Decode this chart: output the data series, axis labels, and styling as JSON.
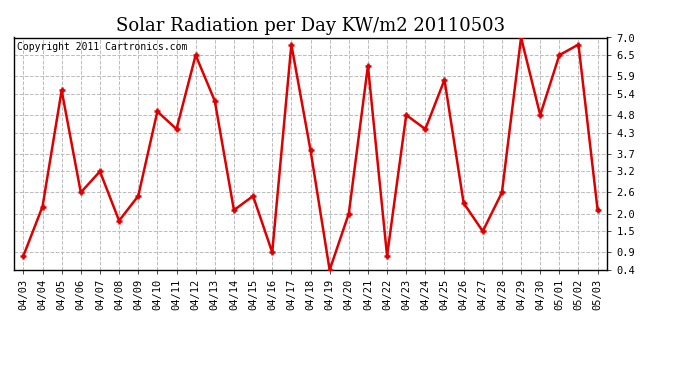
{
  "title": "Solar Radiation per Day KW/m2 20110503",
  "copyright_text": "Copyright 2011 Cartronics.com",
  "dates": [
    "04/03",
    "04/04",
    "04/05",
    "04/06",
    "04/07",
    "04/08",
    "04/09",
    "04/10",
    "04/11",
    "04/12",
    "04/13",
    "04/14",
    "04/15",
    "04/16",
    "04/17",
    "04/18",
    "04/19",
    "04/20",
    "04/21",
    "04/22",
    "04/23",
    "04/24",
    "04/25",
    "04/26",
    "04/27",
    "04/28",
    "04/29",
    "04/30",
    "05/01",
    "05/02",
    "05/03"
  ],
  "values": [
    0.8,
    2.2,
    5.5,
    2.6,
    3.2,
    1.8,
    2.5,
    4.9,
    4.4,
    6.5,
    5.2,
    2.1,
    2.5,
    0.9,
    6.8,
    3.8,
    0.4,
    2.0,
    6.2,
    0.8,
    4.8,
    4.4,
    5.8,
    2.3,
    1.5,
    2.6,
    7.0,
    4.8,
    6.5,
    6.8,
    2.1
  ],
  "line_color": "#dd0000",
  "marker_color": "#dd0000",
  "bg_color": "#ffffff",
  "plot_bg_color": "#ffffff",
  "grid_color": "#bbbbbb",
  "title_fontsize": 13,
  "label_fontsize": 7.5,
  "copyright_fontsize": 7,
  "yticks": [
    0.4,
    0.9,
    1.5,
    2.0,
    2.6,
    3.2,
    3.7,
    4.3,
    4.8,
    5.4,
    5.9,
    6.5,
    7.0
  ],
  "ymin": 0.4,
  "ymax": 7.0
}
